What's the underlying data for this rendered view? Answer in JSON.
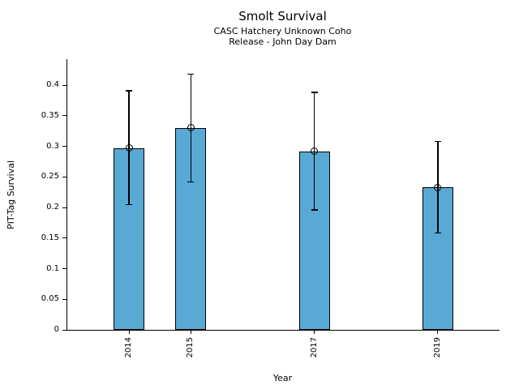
{
  "chart_data": {
    "type": "bar",
    "title": "Smolt Survival",
    "subtitle": [
      "CASC Hatchery Unknown Coho",
      "Release - John Day Dam"
    ],
    "xlabel": "Year",
    "ylabel": "PIT-Tag Survival",
    "categories": [
      2014,
      2015,
      2017,
      2019
    ],
    "values": [
      0.297,
      0.33,
      0.292,
      0.233
    ],
    "error_low": [
      0.205,
      0.242,
      0.196,
      0.158
    ],
    "error_high": [
      0.391,
      0.418,
      0.388,
      0.308
    ],
    "bar_width": 0.5,
    "xlim": [
      2013,
      2020
    ],
    "ylim": [
      0,
      0.4425
    ],
    "yticks": [
      0,
      0.05,
      0.1,
      0.15,
      0.2,
      0.25,
      0.3,
      0.35,
      0.4
    ],
    "ytick_labels": [
      "0",
      "0.05",
      "0.1",
      "0.15",
      "0.2",
      "0.25",
      "0.3",
      "0.35",
      "0.4"
    ],
    "bar_color": "#58a9d4",
    "bar_edge_color": "#000000",
    "error_color": "#000000",
    "marker": "open-circle",
    "grid": false,
    "legend": null
  }
}
